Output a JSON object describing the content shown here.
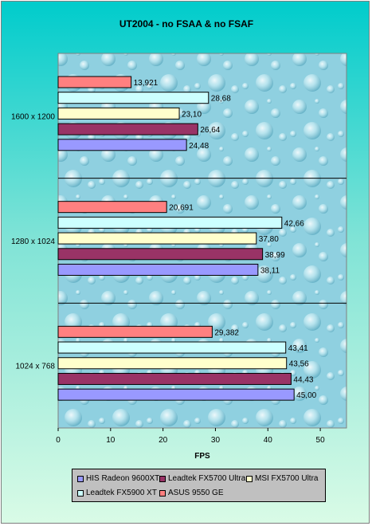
{
  "chart_data": {
    "type": "bar",
    "orientation": "horizontal",
    "title": "UT2004 - no FSAA & no FSAF",
    "xlabel": "FPS",
    "ylabel": "",
    "xlim": [
      0,
      55
    ],
    "x_ticks": [
      "0",
      "10",
      "20",
      "30",
      "40",
      "50"
    ],
    "grid": false,
    "legend_position": "bottom",
    "categories": [
      "1600 x 1200",
      "1280 x 1024",
      "1024 x 768"
    ],
    "series": [
      {
        "name": "HIS Radeon 9600XT",
        "color": "#9999ff",
        "values": [
          24.48,
          38.11,
          45.0
        ],
        "labels": [
          "24,48",
          "38,11",
          "45,00"
        ]
      },
      {
        "name": "Leadtek FX5700 Ultra",
        "color": "#993366",
        "values": [
          26.64,
          38.99,
          44.43
        ],
        "labels": [
          "26,64",
          "38,99",
          "44,43"
        ]
      },
      {
        "name": "MSI FX5700 Ultra",
        "color": "#ffffcc",
        "values": [
          23.1,
          37.8,
          43.56
        ],
        "labels": [
          "23,10",
          "37,80",
          "43,56"
        ]
      },
      {
        "name": "Leadtek FX5900 XT",
        "color": "#ccffff",
        "values": [
          28.68,
          42.66,
          43.41
        ],
        "labels": [
          "28,68",
          "42,66",
          "43,41"
        ]
      },
      {
        "name": "ASUS 9550 GE",
        "color": "#ff8080",
        "values": [
          13.921,
          20.691,
          29.382
        ],
        "labels": [
          "13,921",
          "20,691",
          "29,382"
        ]
      }
    ]
  }
}
